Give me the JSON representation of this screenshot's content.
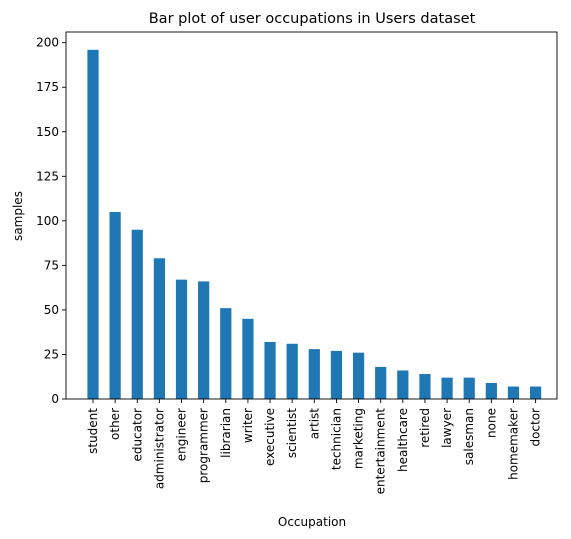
{
  "chart_data": {
    "type": "bar",
    "title": "Bar plot of user occupations in Users dataset",
    "xlabel": "Occupation",
    "ylabel": "samples",
    "categories": [
      "student",
      "other",
      "educator",
      "administrator",
      "engineer",
      "programmer",
      "librarian",
      "writer",
      "executive",
      "scientist",
      "artist",
      "technician",
      "marketing",
      "entertainment",
      "healthcare",
      "retired",
      "lawyer",
      "salesman",
      "none",
      "homemaker",
      "doctor"
    ],
    "values": [
      196,
      105,
      95,
      79,
      67,
      66,
      51,
      45,
      32,
      31,
      28,
      27,
      26,
      18,
      16,
      14,
      12,
      12,
      9,
      7,
      7
    ],
    "ylim": [
      0,
      206
    ],
    "yticks": [
      0,
      25,
      50,
      75,
      100,
      125,
      150,
      175,
      200
    ],
    "bar_color": "#1f77b4",
    "grid": false,
    "legend": "none"
  }
}
